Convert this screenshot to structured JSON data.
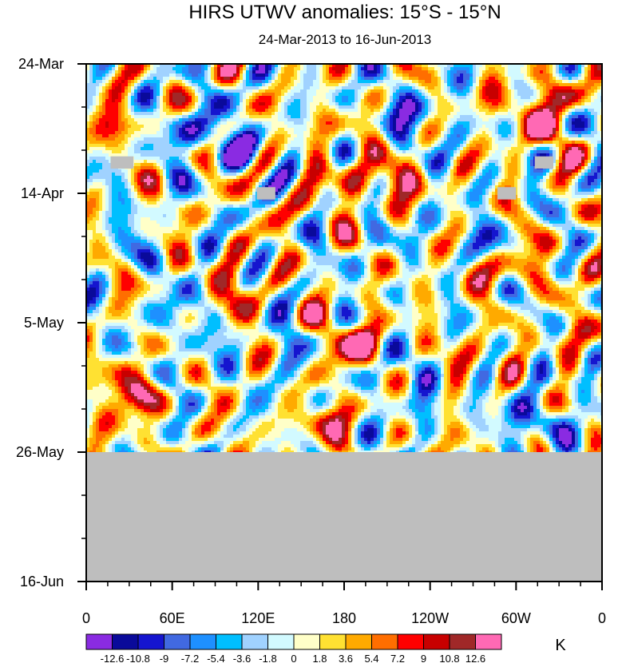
{
  "chart_data": {
    "type": "heatmap",
    "title": "HIRS UTWV anomalies: 15°S - 15°N",
    "subtitle": "24-Mar-2013 to 16-Jun-2013",
    "x_ticks": [
      {
        "lon": 0,
        "label": "0"
      },
      {
        "lon": 60,
        "label": "60E"
      },
      {
        "lon": 120,
        "label": "120E"
      },
      {
        "lon": 180,
        "label": "180"
      },
      {
        "lon": 240,
        "label": "120W"
      },
      {
        "lon": 300,
        "label": "60W"
      },
      {
        "lon": 360,
        "label": "0"
      }
    ],
    "xlim": [
      0,
      360
    ],
    "y_ticks": [
      {
        "day": 0,
        "label": "24-Mar"
      },
      {
        "day": 21,
        "label": "14-Apr"
      },
      {
        "day": 42,
        "label": "5-May"
      },
      {
        "day": 63,
        "label": "26-May"
      },
      {
        "day": 84,
        "label": "16-Jun"
      }
    ],
    "ylim": [
      0,
      84
    ],
    "data_end_day": 63,
    "levels": [
      "-12.6",
      "-10.8",
      "-9",
      "-7.2",
      "-5.4",
      "-3.6",
      "-1.8",
      "0",
      "1.8",
      "3.6",
      "5.4",
      "7.2",
      "9",
      "10.8",
      "12.6"
    ],
    "level_values": [
      -12.6,
      -10.8,
      -9,
      -7.2,
      -5.4,
      -3.6,
      -1.8,
      0,
      1.8,
      3.6,
      5.4,
      7.2,
      9,
      10.8,
      12.6
    ],
    "colors": [
      "#8a2be2",
      "#0a0a9a",
      "#1515cf",
      "#4169e1",
      "#1e90ff",
      "#00bfff",
      "#a0d2ff",
      "#d2faff",
      "#ffffc8",
      "#ffe132",
      "#ffaa00",
      "#ff6e00",
      "#ff0000",
      "#c80000",
      "#a02828",
      "#ff69b4"
    ],
    "missing_color": "#bebebe",
    "units_label": "K",
    "anomaly_features": [
      {
        "lon": 38,
        "day": 54,
        "value": 12.0
      },
      {
        "lon": 28,
        "day": 50,
        "value": 6.0
      },
      {
        "lon": 19,
        "day": 10,
        "value": 6.5
      },
      {
        "lon": 8,
        "day": 4,
        "value": 5.0
      },
      {
        "lon": 5,
        "day": 58,
        "value": 5.5
      },
      {
        "lon": 110,
        "day": 14,
        "value": -11.5
      },
      {
        "lon": 85,
        "day": 10,
        "value": -7.5
      },
      {
        "lon": 70,
        "day": 12,
        "value": -6.0
      },
      {
        "lon": 25,
        "day": 30,
        "value": -6.0
      },
      {
        "lon": 85,
        "day": 42,
        "value": -6.5
      },
      {
        "lon": 48,
        "day": 38,
        "value": -5.0
      },
      {
        "lon": 32,
        "day": 35,
        "value": 4.0
      },
      {
        "lon": 102,
        "day": 40,
        "value": 8.5
      },
      {
        "lon": 108,
        "day": 34,
        "value": 5.0
      },
      {
        "lon": 158,
        "day": 41,
        "value": 4.5
      },
      {
        "lon": 140,
        "day": 44,
        "value": -5.5
      },
      {
        "lon": 165,
        "day": 10,
        "value": 5.0
      },
      {
        "lon": 158,
        "day": 24,
        "value": 4.5
      },
      {
        "lon": 188,
        "day": 18,
        "value": 9.5
      },
      {
        "lon": 210,
        "day": 19,
        "value": 6.0
      },
      {
        "lon": 232,
        "day": 20,
        "value": 5.0
      },
      {
        "lon": 210,
        "day": 7,
        "value": -6.0
      },
      {
        "lon": 240,
        "day": 9,
        "value": -7.5
      },
      {
        "lon": 195,
        "day": 45,
        "value": 11.0
      },
      {
        "lon": 175,
        "day": 46,
        "value": 6.0
      },
      {
        "lon": 175,
        "day": 58,
        "value": 9.5
      },
      {
        "lon": 160,
        "day": 58,
        "value": 5.0
      },
      {
        "lon": 140,
        "day": 56,
        "value": -5.0
      },
      {
        "lon": 232,
        "day": 50,
        "value": -5.5
      },
      {
        "lon": 255,
        "day": 34,
        "value": 4.5
      },
      {
        "lon": 272,
        "day": 48,
        "value": 7.5
      },
      {
        "lon": 300,
        "day": 33,
        "value": 10.5
      },
      {
        "lon": 285,
        "day": 30,
        "value": -5.0
      },
      {
        "lon": 322,
        "day": 11,
        "value": 11.0
      },
      {
        "lon": 330,
        "day": 5,
        "value": 10.5
      },
      {
        "lon": 290,
        "day": 7,
        "value": 7.0
      },
      {
        "lon": 345,
        "day": 44,
        "value": 8.0
      },
      {
        "lon": 355,
        "day": 30,
        "value": 4.0
      },
      {
        "lon": 330,
        "day": 59,
        "value": -7.5
      },
      {
        "lon": 300,
        "day": 58,
        "value": -6.0
      },
      {
        "lon": 268,
        "day": 56,
        "value": -5.0
      },
      {
        "lon": 60,
        "day": 49,
        "value": -3.5
      },
      {
        "lon": 120,
        "day": 58,
        "value": 3.5
      },
      {
        "lon": 262,
        "day": 60,
        "value": 5.0
      },
      {
        "lon": 210,
        "day": 58,
        "value": -4.5
      },
      {
        "lon": 250,
        "day": 27,
        "value": -4.0
      }
    ],
    "missing_boxes": [
      {
        "lon_from": 17,
        "lon_to": 33,
        "day_from": 15,
        "day_to": 17
      },
      {
        "lon_from": 119,
        "lon_to": 132,
        "day_from": 20,
        "day_to": 22
      },
      {
        "lon_from": 287,
        "lon_to": 300,
        "day_from": 20,
        "day_to": 22
      },
      {
        "lon_from": 313,
        "lon_to": 326,
        "day_from": 15,
        "day_to": 17
      }
    ]
  }
}
